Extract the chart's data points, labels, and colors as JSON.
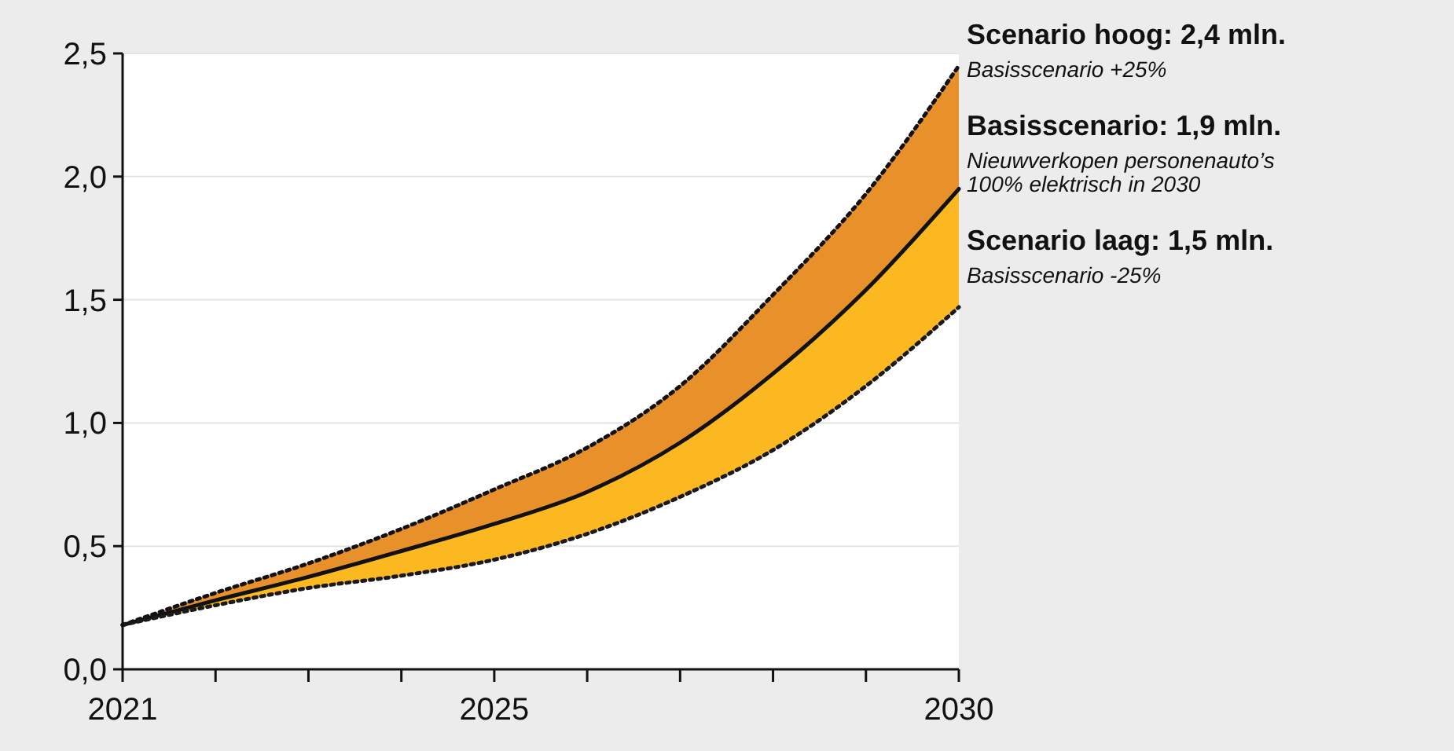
{
  "chart_data": {
    "type": "line",
    "x": [
      2021,
      2022,
      2023,
      2024,
      2025,
      2026,
      2027,
      2028,
      2029,
      2030
    ],
    "xlim": [
      2021,
      2030
    ],
    "xticks": [
      2021,
      {
        "value": 2022,
        "label": null
      },
      {
        "value": 2023,
        "label": null
      },
      {
        "value": 2024,
        "label": null
      },
      2025,
      {
        "value": 2026,
        "label": null
      },
      {
        "value": 2027,
        "label": null
      },
      {
        "value": 2028,
        "label": null
      },
      {
        "value": 2029,
        "label": null
      },
      2030
    ],
    "ylim": [
      0,
      2.5
    ],
    "yticks": [
      {
        "value": 0,
        "label": "0,0"
      },
      {
        "value": 0.5,
        "label": "0,5"
      },
      {
        "value": 1,
        "label": "1,0"
      },
      {
        "value": 1.5,
        "label": "1,5"
      },
      {
        "value": 2,
        "label": "2,0"
      },
      {
        "value": 2.5,
        "label": "2,5"
      }
    ],
    "grid": "y",
    "series": [
      {
        "type": "area",
        "color": "#e8902a",
        "line_style": "dotted",
        "values": [
          0.18,
          0.31,
          0.43,
          0.57,
          0.73,
          0.9,
          1.15,
          1.52,
          1.93,
          2.45
        ]
      },
      {
        "type": "area",
        "color": "#fbb820",
        "line_style": "solid",
        "values": [
          0.18,
          0.28,
          0.375,
          0.48,
          0.59,
          0.72,
          0.92,
          1.2,
          1.54,
          1.95
        ]
      },
      {
        "color": "#1a1a1a",
        "line_style": "dotted",
        "values": [
          0.18,
          0.26,
          0.33,
          0.38,
          0.445,
          0.55,
          0.7,
          0.89,
          1.15,
          1.47
        ]
      }
    ],
    "annotations": [
      "Scenario hoog: 2,4 mln.",
      "Basisscenario +25%",
      "Basisscenario: 1,9 mln.",
      "Nieuwverkopen personenauto’s\n100% elektrisch in 2030",
      "Scenario laag: 1,5 mln.",
      "Basisscenario -25%"
    ]
  }
}
